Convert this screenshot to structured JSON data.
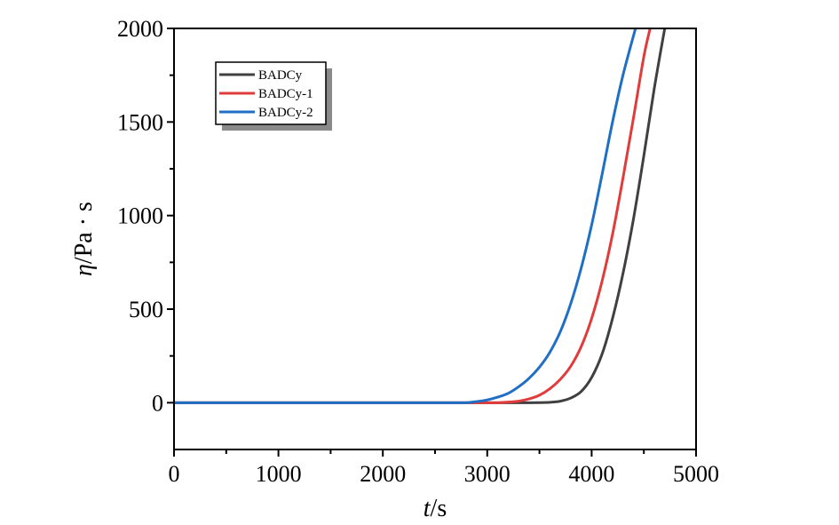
{
  "chart_data": {
    "type": "line",
    "title": "",
    "xlabel": {
      "italic": "t",
      "rest": "/s"
    },
    "ylabel": {
      "italic": "η",
      "rest": "/Pa · s"
    },
    "xlim": [
      0,
      5000
    ],
    "ylim": [
      -250,
      2000
    ],
    "xticks": [
      0,
      1000,
      2000,
      3000,
      4000,
      5000
    ],
    "yticks": [
      0,
      500,
      1000,
      1500,
      2000
    ],
    "xtick_labels": [
      "0",
      "1000",
      "2000",
      "3000",
      "4000",
      "5000"
    ],
    "ytick_labels": [
      "0",
      "500",
      "1000",
      "1500",
      "2000"
    ],
    "grid": false,
    "legend_position": "top-left",
    "series": [
      {
        "name": "BADCy",
        "color": "#404040",
        "x": [
          0,
          3400,
          3500,
          3600,
          3700,
          3800,
          3900,
          4000,
          4100,
          4200,
          4300,
          4400,
          4500,
          4600,
          4700
        ],
        "y": [
          0,
          0,
          0,
          2,
          8,
          25,
          60,
          135,
          260,
          450,
          690,
          980,
          1320,
          1680,
          2000
        ]
      },
      {
        "name": "BADCy-1",
        "color": "#e03c3c",
        "x": [
          0,
          3100,
          3200,
          3300,
          3400,
          3500,
          3600,
          3700,
          3800,
          3900,
          4000,
          4100,
          4200,
          4300,
          4400,
          4500,
          4560
        ],
        "y": [
          0,
          0,
          2,
          8,
          20,
          40,
          75,
          125,
          195,
          300,
          450,
          650,
          900,
          1200,
          1520,
          1850,
          2000
        ]
      },
      {
        "name": "BADCy-2",
        "color": "#1f6fc4",
        "x": [
          0,
          2800,
          2900,
          3000,
          3100,
          3200,
          3300,
          3400,
          3500,
          3600,
          3700,
          3800,
          3900,
          4000,
          4100,
          4200,
          4300,
          4420
        ],
        "y": [
          0,
          0,
          5,
          15,
          30,
          50,
          85,
          130,
          190,
          270,
          380,
          530,
          720,
          950,
          1220,
          1500,
          1750,
          2000
        ]
      }
    ]
  }
}
